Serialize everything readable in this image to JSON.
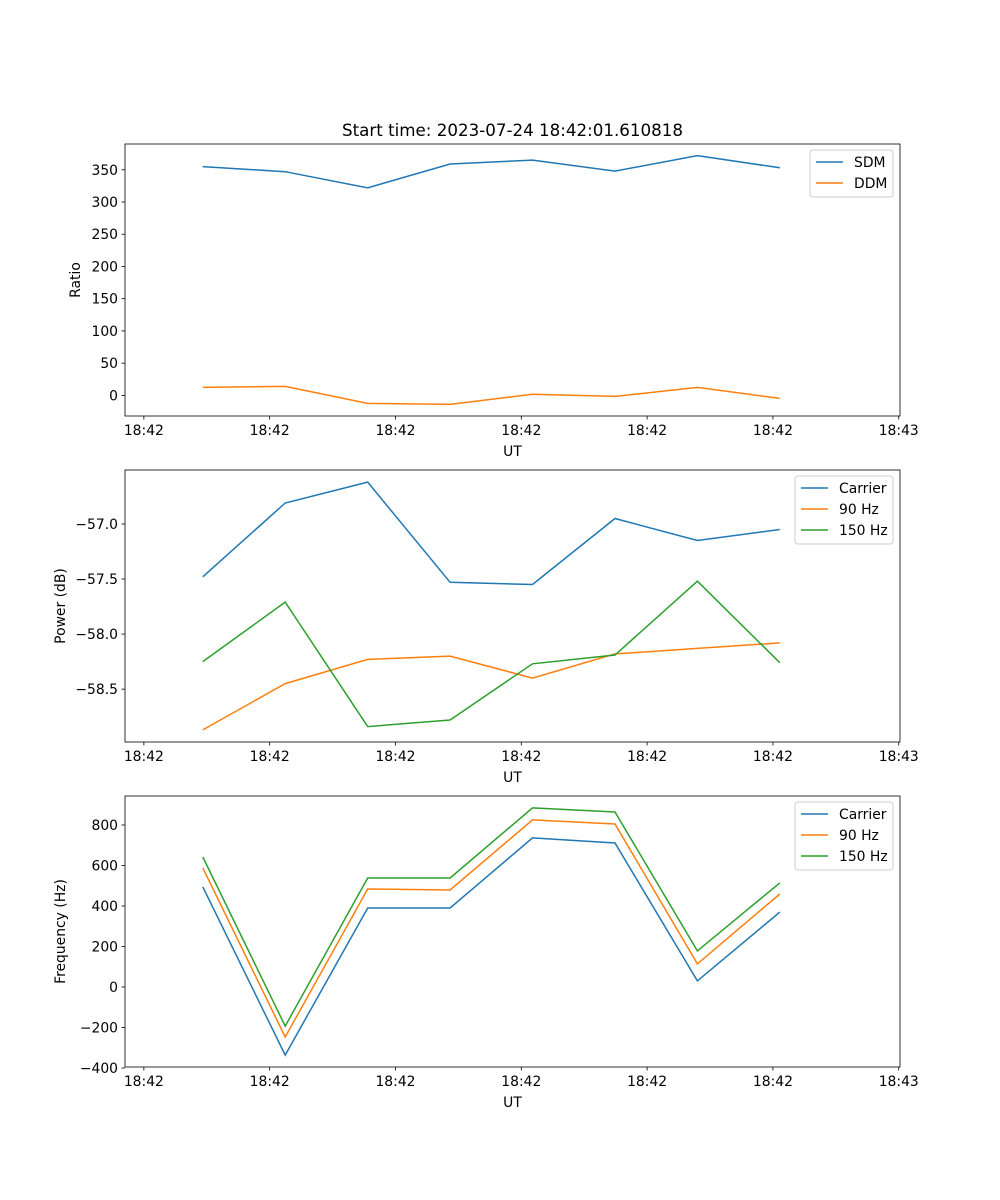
{
  "figure_title": "Start time: 2023-07-24 18:42:01.610818",
  "colors": {
    "c0": "#1f77b4",
    "c1": "#ff7f0e",
    "c2": "#2ca02c"
  },
  "chart_data": [
    {
      "type": "line",
      "title": "Start time: 2023-07-24 18:42:01.610818",
      "xlabel": "UT",
      "ylabel": "Ratio",
      "x_unit": "seconds after 18:42:00",
      "x": [
        4.68,
        11.23,
        17.79,
        24.34,
        30.89,
        37.45,
        44.0,
        50.55
      ],
      "xlim": [
        -1.5,
        60.1
      ],
      "xticks": [
        0,
        10,
        20,
        30,
        40,
        50,
        60
      ],
      "xtick_labels": [
        "18:42",
        "18:42",
        "18:42",
        "18:42",
        "18:42",
        "18:42",
        "18:43"
      ],
      "ylim": [
        -32,
        390
      ],
      "yticks": [
        0,
        50,
        100,
        150,
        200,
        250,
        300,
        350
      ],
      "ytick_labels": [
        "0",
        "50",
        "100",
        "150",
        "200",
        "250",
        "300",
        "350"
      ],
      "legend": "top-right",
      "grid": false,
      "series": [
        {
          "name": "SDM",
          "color": "#1f77b4",
          "values": [
            355,
            347,
            322,
            359,
            365,
            348,
            372,
            353
          ]
        },
        {
          "name": "DDM",
          "color": "#ff7f0e",
          "values": [
            12.4,
            14,
            -12.4,
            -14,
            1.6,
            -1.6,
            12.4,
            -4.7
          ]
        }
      ]
    },
    {
      "type": "line",
      "xlabel": "UT",
      "ylabel": "Power (dB)",
      "x": [
        4.68,
        11.23,
        17.79,
        24.34,
        30.89,
        37.45,
        44.0,
        50.55
      ],
      "xlim": [
        -1.5,
        60.1
      ],
      "xticks": [
        0,
        10,
        20,
        30,
        40,
        50,
        60
      ],
      "xtick_labels": [
        "18:42",
        "18:42",
        "18:42",
        "18:42",
        "18:42",
        "18:42",
        "18:43"
      ],
      "ylim": [
        -58.98,
        -56.51
      ],
      "yticks": [
        -57.0,
        -57.5,
        -58.0,
        -58.5
      ],
      "ytick_labels": [
        "−57.0",
        "−57.5",
        "−58.0",
        "−58.5"
      ],
      "legend": "top-right",
      "grid": false,
      "series": [
        {
          "name": "Carrier",
          "color": "#1f77b4",
          "values": [
            -57.48,
            -56.81,
            -56.62,
            -57.53,
            -57.55,
            -56.95,
            -57.15,
            -57.05
          ]
        },
        {
          "name": "90 Hz",
          "color": "#ff7f0e",
          "values": [
            -58.87,
            -58.45,
            -58.23,
            -58.2,
            -58.4,
            -58.18,
            -58.13,
            -58.08
          ]
        },
        {
          "name": "150 Hz",
          "color": "#2ca02c",
          "values": [
            -58.25,
            -57.71,
            -58.84,
            -58.78,
            -58.27,
            -58.19,
            -57.52,
            -58.26
          ]
        }
      ]
    },
    {
      "type": "line",
      "xlabel": "UT",
      "ylabel": "Frequency (Hz)",
      "x": [
        4.68,
        11.23,
        17.79,
        24.34,
        30.89,
        37.45,
        44.0,
        50.55
      ],
      "xlim": [
        -1.5,
        60.1
      ],
      "xticks": [
        0,
        10,
        20,
        30,
        40,
        50,
        60
      ],
      "xtick_labels": [
        "18:42",
        "18:42",
        "18:42",
        "18:42",
        "18:42",
        "18:42",
        "18:43"
      ],
      "ylim": [
        -395,
        943
      ],
      "yticks": [
        -400,
        -200,
        0,
        200,
        400,
        600,
        800
      ],
      "ytick_labels": [
        "−400",
        "−200",
        "0",
        "200",
        "400",
        "600",
        "800"
      ],
      "legend": "top-right",
      "grid": false,
      "series": [
        {
          "name": "Carrier",
          "color": "#1f77b4",
          "values": [
            494,
            -336,
            390,
            390,
            736,
            711,
            30,
            370
          ]
        },
        {
          "name": "90 Hz",
          "color": "#ff7f0e",
          "values": [
            588,
            -247,
            484,
            479,
            825,
            805,
            114,
            459
          ]
        },
        {
          "name": "150 Hz",
          "color": "#2ca02c",
          "values": [
            642,
            -193,
            538,
            538,
            884,
            864,
            178,
            514
          ]
        }
      ]
    }
  ]
}
